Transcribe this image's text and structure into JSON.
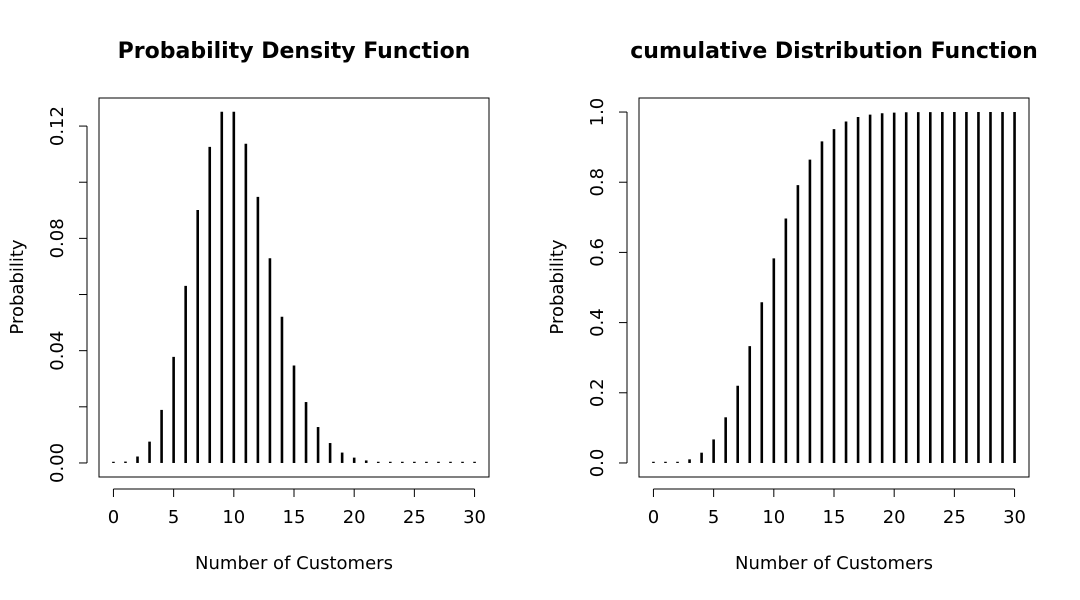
{
  "chart_data": [
    {
      "type": "bar",
      "title": "Probability Density Function",
      "xlabel": "Number of Customers",
      "ylabel": "Probability",
      "xlim": [
        -1.2,
        31.2
      ],
      "ylim": [
        -0.005,
        0.13
      ],
      "xticks": [
        0,
        5,
        10,
        15,
        20,
        25,
        30
      ],
      "yticks": [
        0.0,
        0.04,
        0.08,
        0.12
      ],
      "yminor": [
        0.02,
        0.06,
        0.1
      ],
      "ytick_labels": [
        "0.00",
        "0.04",
        "0.08",
        "0.12"
      ],
      "grid": false,
      "x": [
        0,
        1,
        2,
        3,
        4,
        5,
        6,
        7,
        8,
        9,
        10,
        11,
        12,
        13,
        14,
        15,
        16,
        17,
        18,
        19,
        20,
        21,
        22,
        23,
        24,
        25,
        26,
        27,
        28,
        29,
        30
      ],
      "values": [
        5e-05,
        0.0005,
        0.0023,
        0.0076,
        0.0189,
        0.0378,
        0.0631,
        0.0901,
        0.1126,
        0.1251,
        0.1251,
        0.1137,
        0.0948,
        0.0729,
        0.0521,
        0.0347,
        0.0217,
        0.0128,
        0.0071,
        0.0037,
        0.0019,
        0.0009,
        0.0004,
        0.0002,
        0.0001,
        4e-05,
        2e-05,
        1e-05,
        0,
        0,
        0
      ]
    },
    {
      "type": "bar",
      "title": "cumulative Distribution Function",
      "xlabel": "Number of Customers",
      "ylabel": "Probability",
      "xlim": [
        -1.2,
        31.2
      ],
      "ylim": [
        -0.04,
        1.04
      ],
      "xticks": [
        0,
        5,
        10,
        15,
        20,
        25,
        30
      ],
      "yticks": [
        0.0,
        0.2,
        0.4,
        0.6,
        0.8,
        1.0
      ],
      "yminor": [],
      "ytick_labels": [
        "0.0",
        "0.2",
        "0.4",
        "0.6",
        "0.8",
        "1.0"
      ],
      "grid": false,
      "x": [
        0,
        1,
        2,
        3,
        4,
        5,
        6,
        7,
        8,
        9,
        10,
        11,
        12,
        13,
        14,
        15,
        16,
        17,
        18,
        19,
        20,
        21,
        22,
        23,
        24,
        25,
        26,
        27,
        28,
        29,
        30
      ],
      "values": [
        5e-05,
        0.0005,
        0.0028,
        0.0103,
        0.0293,
        0.0671,
        0.1301,
        0.2202,
        0.3328,
        0.4579,
        0.583,
        0.6968,
        0.7916,
        0.8645,
        0.9165,
        0.9513,
        0.973,
        0.9857,
        0.9928,
        0.9965,
        0.9984,
        0.9993,
        0.9997,
        0.9999,
        1.0,
        1.0,
        1.0,
        1.0,
        1.0,
        1.0,
        1.0
      ]
    }
  ]
}
